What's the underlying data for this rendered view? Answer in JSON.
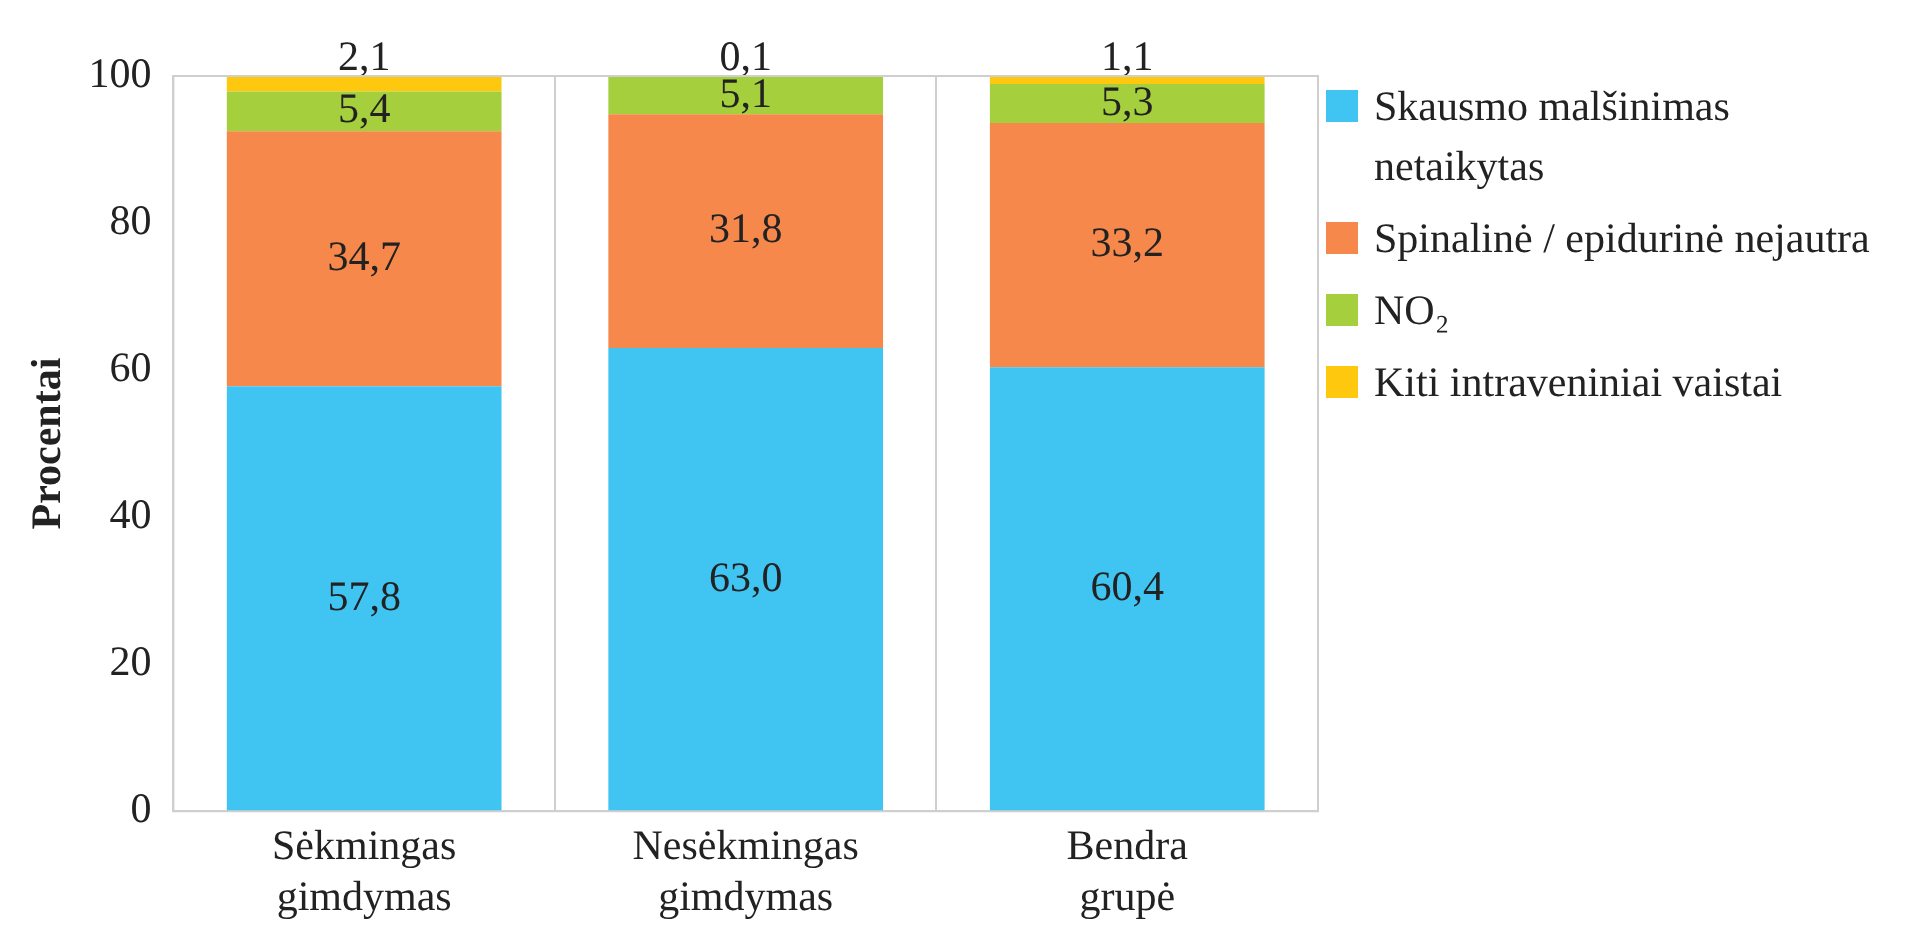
{
  "chart_data": {
    "type": "bar",
    "stacked": true,
    "ylabel": "Procentai",
    "categories": [
      "Sėkmingas gimdymas",
      "Nesėkmingas gimdymas",
      "Bendra grupė"
    ],
    "series": [
      {
        "name": "Skausmo malšinimas netaikytas",
        "color": "#40c5f2",
        "values": [
          57.8,
          63.0,
          60.4
        ],
        "value_labels": [
          "57,8",
          "63,0",
          "60,4"
        ]
      },
      {
        "name": "Spinalinė / epidurinė nejautra",
        "color": "#f5884a",
        "values": [
          34.7,
          31.8,
          33.2
        ],
        "value_labels": [
          "34,7",
          "31,8",
          "33,2"
        ]
      },
      {
        "name": "NO₂",
        "color": "#a5cf3c",
        "values": [
          5.4,
          5.1,
          5.3
        ],
        "value_labels": [
          "5,4",
          "5,1",
          "5,3"
        ]
      },
      {
        "name": "Kiti intraveniniai vaistai",
        "color": "#fec80f",
        "values": [
          2.1,
          0.1,
          1.1
        ],
        "value_labels": [
          "2,1",
          "0,1",
          "1,1"
        ]
      }
    ],
    "ylim": [
      0,
      100
    ],
    "yticks": [
      0,
      20,
      40,
      60,
      80,
      100
    ],
    "grid": "x",
    "legend": "right"
  }
}
